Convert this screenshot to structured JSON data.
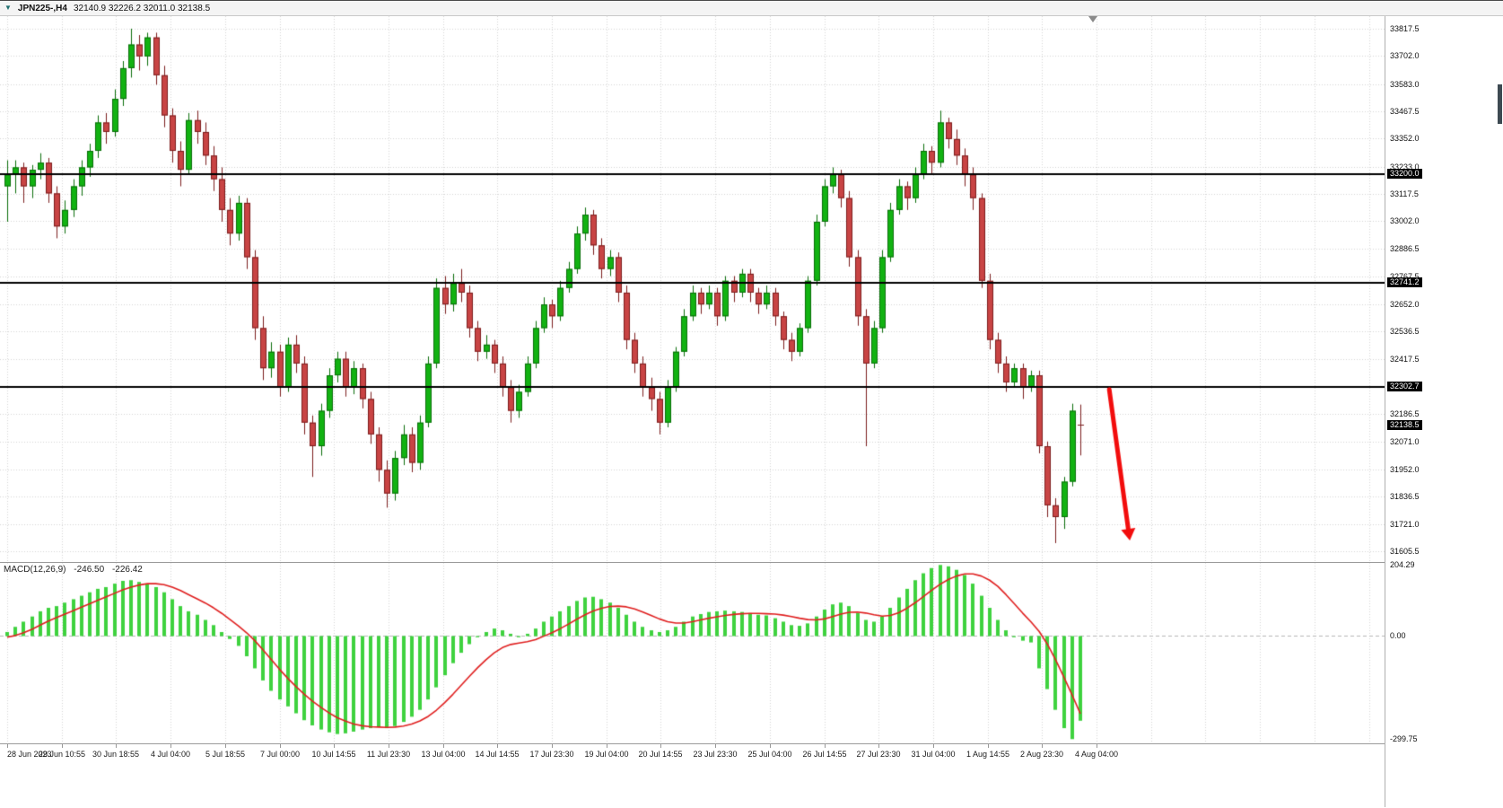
{
  "toolbar": {
    "symbol_label": "JPN225-,H4",
    "quote_line": "32140.9 32226.2 32011.0 32138.5"
  },
  "colors": {
    "background": "#ffffff",
    "grid": "#d6d6d6",
    "candle_up": "#12b212",
    "candle_up_border": "#0a6e0a",
    "candle_down": "#c84444",
    "candle_down_border": "#7c1e1e",
    "hline": "#000000",
    "macd_bar": "#3fd23f",
    "macd_signal": "#e02020",
    "arrow": "#f20d0d",
    "badge_bg": "#000000",
    "badge_text": "#ffffff"
  },
  "chart_data": {
    "type": "candlestick",
    "symbol": "JPN225-",
    "timeframe": "H4",
    "x_labels": [
      "28 Jun 2023",
      "29 Jun 10:55",
      "30 Jun 18:55",
      "4 Jul 04:00",
      "5 Jul 18:55",
      "7 Jul 00:00",
      "10 Jul 14:55",
      "11 Jul 23:30",
      "13 Jul 04:00",
      "14 Jul 14:55",
      "17 Jul 23:30",
      "19 Jul 04:00",
      "20 Jul 14:55",
      "23 Jul 23:30",
      "25 Jul 04:00",
      "26 Jul 14:55",
      "27 Jul 23:30",
      "31 Jul 04:00",
      "1 Aug 14:55",
      "2 Aug 23:30",
      "4 Aug 04:00"
    ],
    "price_pane": {
      "ylim": [
        31560,
        33870
      ],
      "ticks": [
        {
          "v": 33817.5,
          "label": "33817.5"
        },
        {
          "v": 33702.0,
          "label": "33702.0"
        },
        {
          "v": 33583.0,
          "label": "33583.0"
        },
        {
          "v": 33467.5,
          "label": "33467.5"
        },
        {
          "v": 33352.0,
          "label": "33352.0"
        },
        {
          "v": 33233.0,
          "label": "33233.0"
        },
        {
          "v": 33117.5,
          "label": "33117.5"
        },
        {
          "v": 33002.0,
          "label": "33002.0"
        },
        {
          "v": 32886.5,
          "label": "32886.5"
        },
        {
          "v": 32767.5,
          "label": "32767.5"
        },
        {
          "v": 32652.0,
          "label": "32652.0"
        },
        {
          "v": 32536.5,
          "label": "32536.5"
        },
        {
          "v": 32417.5,
          "label": "32417.5"
        },
        {
          "v": 32186.5,
          "label": "32186.5"
        },
        {
          "v": 32071.0,
          "label": "32071.0"
        },
        {
          "v": 31952.0,
          "label": "31952.0"
        },
        {
          "v": 31836.5,
          "label": "31836.5"
        },
        {
          "v": 31721.0,
          "label": "31721.0"
        },
        {
          "v": 31605.5,
          "label": "31605.5"
        }
      ],
      "hlines": [
        {
          "v": 33200.0,
          "label": "33200.0"
        },
        {
          "v": 32741.2,
          "label": "32741.2"
        },
        {
          "v": 32302.7,
          "label": "32302.7"
        }
      ],
      "current_price": {
        "v": 32138.5,
        "label": "32138.5"
      },
      "candles": [
        [
          33150,
          33260,
          33000,
          33200
        ],
        [
          33200,
          33260,
          33120,
          33230
        ],
        [
          33230,
          33250,
          33080,
          33150
        ],
        [
          33150,
          33240,
          33100,
          33220
        ],
        [
          33220,
          33290,
          33180,
          33250
        ],
        [
          33250,
          33270,
          33080,
          33120
        ],
        [
          33120,
          33150,
          32930,
          32980
        ],
        [
          32980,
          33090,
          32950,
          33050
        ],
        [
          33050,
          33180,
          33020,
          33150
        ],
        [
          33150,
          33260,
          33110,
          33230
        ],
        [
          33230,
          33330,
          33190,
          33300
        ],
        [
          33300,
          33450,
          33270,
          33420
        ],
        [
          33420,
          33460,
          33330,
          33380
        ],
        [
          33380,
          33560,
          33360,
          33520
        ],
        [
          33520,
          33680,
          33490,
          33650
        ],
        [
          33650,
          33817,
          33610,
          33750
        ],
        [
          33750,
          33790,
          33640,
          33700
        ],
        [
          33700,
          33800,
          33660,
          33780
        ],
        [
          33780,
          33800,
          33580,
          33620
        ],
        [
          33620,
          33660,
          33400,
          33450
        ],
        [
          33450,
          33480,
          33250,
          33300
        ],
        [
          33300,
          33340,
          33150,
          33220
        ],
        [
          33220,
          33460,
          33200,
          33430
        ],
        [
          33430,
          33470,
          33330,
          33380
        ],
        [
          33380,
          33420,
          33240,
          33280
        ],
        [
          33280,
          33320,
          33130,
          33180
        ],
        [
          33180,
          33230,
          33000,
          33050
        ],
        [
          33050,
          33100,
          32900,
          32950
        ],
        [
          32950,
          33110,
          32920,
          33080
        ],
        [
          33080,
          33100,
          32800,
          32850
        ],
        [
          32850,
          32880,
          32500,
          32550
        ],
        [
          32550,
          32600,
          32330,
          32380
        ],
        [
          32380,
          32490,
          32340,
          32450
        ],
        [
          32450,
          32480,
          32260,
          32300
        ],
        [
          32300,
          32510,
          32280,
          32480
        ],
        [
          32480,
          32520,
          32360,
          32400
        ],
        [
          32400,
          32430,
          32100,
          32150
        ],
        [
          32150,
          32180,
          31920,
          32050
        ],
        [
          32050,
          32230,
          32010,
          32200
        ],
        [
          32200,
          32380,
          32170,
          32350
        ],
        [
          32350,
          32450,
          32320,
          32420
        ],
        [
          32420,
          32450,
          32260,
          32300
        ],
        [
          32300,
          32410,
          32270,
          32380
        ],
        [
          32380,
          32400,
          32210,
          32250
        ],
        [
          32250,
          32280,
          32060,
          32100
        ],
        [
          32100,
          32130,
          31900,
          31950
        ],
        [
          31950,
          31990,
          31790,
          31850
        ],
        [
          31850,
          32030,
          31820,
          32000
        ],
        [
          32000,
          32140,
          31970,
          32100
        ],
        [
          32100,
          32130,
          31940,
          31980
        ],
        [
          31980,
          32180,
          31950,
          32150
        ],
        [
          32150,
          32430,
          32130,
          32400
        ],
        [
          32400,
          32760,
          32380,
          32720
        ],
        [
          32720,
          32770,
          32610,
          32650
        ],
        [
          32650,
          32780,
          32620,
          32740
        ],
        [
          32740,
          32800,
          32660,
          32700
        ],
        [
          32700,
          32730,
          32510,
          32550
        ],
        [
          32550,
          32580,
          32410,
          32450
        ],
        [
          32450,
          32520,
          32420,
          32480
        ],
        [
          32480,
          32500,
          32360,
          32400
        ],
        [
          32400,
          32430,
          32260,
          32300
        ],
        [
          32300,
          32330,
          32150,
          32200
        ],
        [
          32200,
          32310,
          32170,
          32280
        ],
        [
          32280,
          32430,
          32260,
          32400
        ],
        [
          32400,
          32580,
          32380,
          32550
        ],
        [
          32550,
          32680,
          32530,
          32650
        ],
        [
          32650,
          32670,
          32550,
          32600
        ],
        [
          32600,
          32750,
          32580,
          32720
        ],
        [
          32720,
          32830,
          32700,
          32800
        ],
        [
          32800,
          32980,
          32780,
          32950
        ],
        [
          32950,
          33060,
          32920,
          33030
        ],
        [
          33030,
          33050,
          32860,
          32900
        ],
        [
          32900,
          32930,
          32760,
          32800
        ],
        [
          32800,
          32880,
          32770,
          32850
        ],
        [
          32850,
          32870,
          32660,
          32700
        ],
        [
          32700,
          32730,
          32460,
          32500
        ],
        [
          32500,
          32530,
          32360,
          32400
        ],
        [
          32400,
          32430,
          32260,
          32300
        ],
        [
          32300,
          32340,
          32200,
          32250
        ],
        [
          32250,
          32280,
          32100,
          32150
        ],
        [
          32150,
          32330,
          32130,
          32300
        ],
        [
          32300,
          32470,
          32280,
          32450
        ],
        [
          32450,
          32630,
          32430,
          32600
        ],
        [
          32600,
          32730,
          32580,
          32700
        ],
        [
          32700,
          32720,
          32610,
          32650
        ],
        [
          32650,
          32730,
          32630,
          32700
        ],
        [
          32700,
          32720,
          32560,
          32600
        ],
        [
          32600,
          32770,
          32580,
          32750
        ],
        [
          32750,
          32770,
          32660,
          32700
        ],
        [
          32700,
          32800,
          32680,
          32780
        ],
        [
          32780,
          32800,
          32660,
          32700
        ],
        [
          32700,
          32720,
          32610,
          32650
        ],
        [
          32650,
          32730,
          32630,
          32700
        ],
        [
          32700,
          32720,
          32560,
          32600
        ],
        [
          32600,
          32620,
          32460,
          32500
        ],
        [
          32500,
          32530,
          32410,
          32450
        ],
        [
          32450,
          32570,
          32430,
          32550
        ],
        [
          32550,
          32770,
          32530,
          32750
        ],
        [
          32750,
          33030,
          32730,
          33000
        ],
        [
          33000,
          33180,
          32980,
          33150
        ],
        [
          33150,
          33230,
          33120,
          33200
        ],
        [
          33200,
          33220,
          33060,
          33100
        ],
        [
          33100,
          33130,
          32810,
          32850
        ],
        [
          32850,
          32880,
          32560,
          32600
        ],
        [
          32600,
          32630,
          32050,
          32400
        ],
        [
          32400,
          32580,
          32380,
          32550
        ],
        [
          32550,
          32880,
          32530,
          32850
        ],
        [
          32850,
          33080,
          32830,
          33050
        ],
        [
          33050,
          33180,
          33030,
          33150
        ],
        [
          33150,
          33170,
          33050,
          33100
        ],
        [
          33100,
          33230,
          33080,
          33200
        ],
        [
          33200,
          33330,
          33180,
          33300
        ],
        [
          33300,
          33320,
          33200,
          33250
        ],
        [
          33250,
          33470,
          33230,
          33420
        ],
        [
          33420,
          33440,
          33310,
          33350
        ],
        [
          33350,
          33390,
          33240,
          33280
        ],
        [
          33280,
          33310,
          33150,
          33200
        ],
        [
          33200,
          33230,
          33050,
          33100
        ],
        [
          33100,
          33120,
          32720,
          32750
        ],
        [
          32750,
          32780,
          32460,
          32500
        ],
        [
          32500,
          32530,
          32360,
          32400
        ],
        [
          32400,
          32430,
          32280,
          32320
        ],
        [
          32320,
          32400,
          32300,
          32380
        ],
        [
          32380,
          32400,
          32250,
          32300
        ],
        [
          32300,
          32370,
          32280,
          32350
        ],
        [
          32350,
          32370,
          32020,
          32050
        ],
        [
          32050,
          32070,
          31750,
          31800
        ],
        [
          31800,
          31830,
          31640,
          31750
        ],
        [
          31750,
          31920,
          31700,
          31900
        ],
        [
          31900,
          32230,
          31880,
          32200
        ],
        [
          32140.9,
          32226.2,
          32011.0,
          32138.5
        ]
      ]
    },
    "macd_pane": {
      "label": "MACD(12,26,9)",
      "value_macd": "-246.50",
      "value_signal": "-226.42",
      "ylim": [
        -312,
        210
      ],
      "ticks": [
        {
          "v": 204.29,
          "label": "204.29"
        },
        {
          "v": 0,
          "label": "0.00"
        },
        {
          "v": -299.75,
          "label": "-299.75"
        }
      ],
      "histogram": [
        10,
        25,
        40,
        55,
        70,
        80,
        85,
        95,
        105,
        115,
        125,
        135,
        140,
        150,
        158,
        160,
        155,
        150,
        140,
        125,
        105,
        85,
        70,
        60,
        45,
        30,
        10,
        -10,
        -30,
        -60,
        -95,
        -130,
        -160,
        -185,
        -205,
        -225,
        -245,
        -260,
        -272,
        -280,
        -285,
        -283,
        -278,
        -272,
        -268,
        -265,
        -268,
        -262,
        -250,
        -235,
        -215,
        -185,
        -150,
        -115,
        -80,
        -50,
        -25,
        -5,
        10,
        20,
        15,
        5,
        -5,
        5,
        20,
        40,
        55,
        70,
        85,
        100,
        110,
        112,
        105,
        95,
        80,
        60,
        40,
        25,
        15,
        10,
        15,
        25,
        40,
        55,
        62,
        68,
        70,
        72,
        70,
        68,
        65,
        60,
        58,
        50,
        40,
        30,
        28,
        35,
        55,
        75,
        90,
        95,
        85,
        65,
        45,
        40,
        55,
        80,
        110,
        135,
        160,
        180,
        195,
        204,
        200,
        190,
        175,
        150,
        115,
        80,
        45,
        15,
        -5,
        -15,
        -20,
        -95,
        -155,
        -215,
        -268,
        -299.75,
        -246.5
      ],
      "signal": [
        -5,
        0,
        8,
        18,
        30,
        42,
        52,
        62,
        72,
        82,
        92,
        102,
        112,
        122,
        132,
        140,
        146,
        150,
        150,
        147,
        140,
        130,
        118,
        106,
        94,
        80,
        64,
        46,
        28,
        8,
        -15,
        -42,
        -70,
        -98,
        -124,
        -148,
        -170,
        -190,
        -208,
        -224,
        -238,
        -248,
        -256,
        -261,
        -264,
        -265,
        -266,
        -265,
        -262,
        -256,
        -247,
        -234,
        -216,
        -194,
        -170,
        -144,
        -118,
        -93,
        -70,
        -50,
        -35,
        -26,
        -22,
        -18,
        -12,
        -2,
        8,
        20,
        33,
        47,
        60,
        71,
        79,
        84,
        85,
        83,
        77,
        68,
        58,
        48,
        40,
        36,
        36,
        40,
        45,
        50,
        54,
        58,
        61,
        63,
        64,
        64,
        63,
        62,
        59,
        55,
        50,
        46,
        45,
        48,
        55,
        62,
        67,
        68,
        65,
        60,
        56,
        58,
        66,
        79,
        95,
        113,
        131,
        148,
        162,
        172,
        178,
        178,
        172,
        160,
        142,
        118,
        92,
        65,
        40,
        12,
        -25,
        -70,
        -120,
        -172,
        -226.42
      ]
    },
    "arrow": {
      "from": {
        "bar": 133.5,
        "price": 32290
      },
      "to": {
        "bar": 135.8,
        "price": 31700
      }
    }
  }
}
